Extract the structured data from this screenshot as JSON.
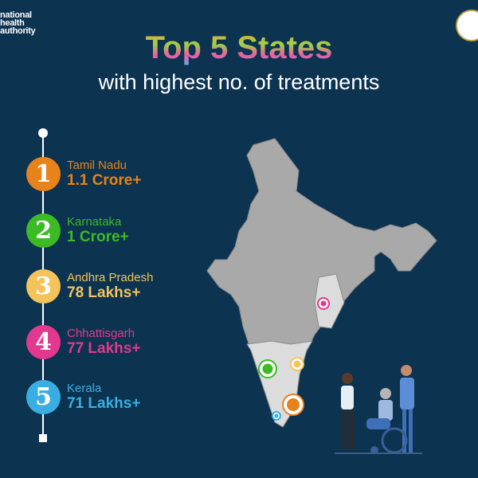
{
  "header": {
    "logo_lines": [
      "national",
      "health",
      "authority"
    ],
    "title": "Top 5 States",
    "subtitle": "with highest no. of treatments"
  },
  "states": [
    {
      "rank": "1",
      "name": "Tamil Nadu",
      "value": "1.1 Crore+",
      "color": "#e8821a"
    },
    {
      "rank": "2",
      "name": "Karnataka",
      "value": "1 Crore+",
      "color": "#3dbb24"
    },
    {
      "rank": "3",
      "name": "Andhra Pradesh",
      "value": "78 Lakhs+",
      "color": "#f4c35a"
    },
    {
      "rank": "4",
      "name": "Chhattisgarh",
      "value": "77 Lakhs+",
      "color": "#e2398e"
    },
    {
      "rank": "5",
      "name": "Kerala",
      "value": "71 Lakhs+",
      "color": "#3aaee2"
    }
  ],
  "map": {
    "base_color": "#a9a9a9",
    "highlight_color": "#dcdcdc"
  }
}
